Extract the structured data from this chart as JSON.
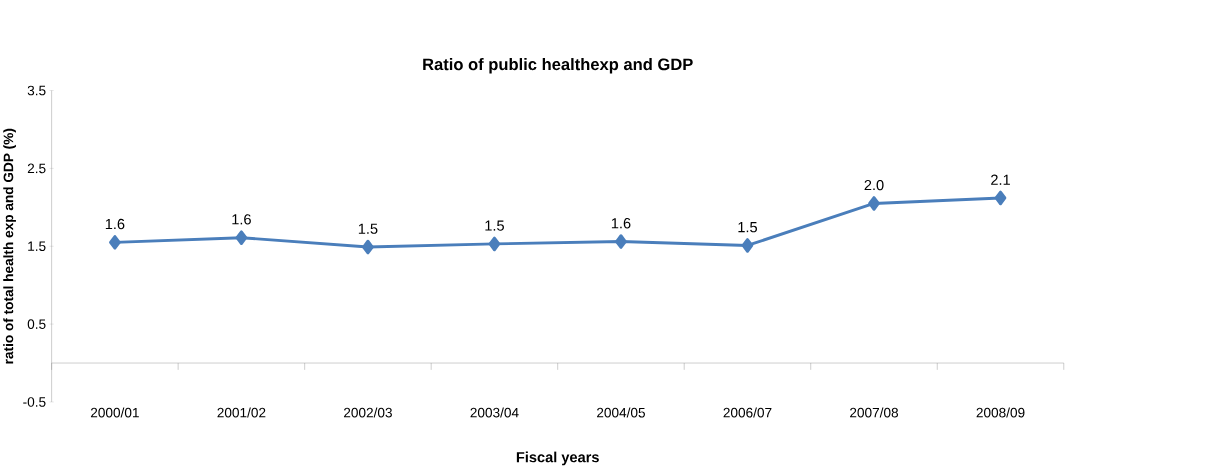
{
  "chart_data": {
    "type": "line",
    "title": "Ratio of public healthexp and GDP",
    "xlabel": "Fiscal years",
    "ylabel": "ratio of total health exp and GDP (%)",
    "categories": [
      "2000/01",
      "2001/02",
      "2002/03",
      "2003/04",
      "2004/05",
      "2006/07",
      "2007/08",
      "2008/09"
    ],
    "series": [
      {
        "color": "#4a7ebb",
        "values": [
          1.55,
          1.61,
          1.49,
          1.53,
          1.56,
          1.51,
          2.05,
          2.12
        ],
        "value_labels": [
          "1.6",
          "1.6",
          "1.5",
          "1.5",
          "1.6",
          "1.5",
          "2.0",
          "2.1"
        ]
      }
    ],
    "ylim": [
      -0.5,
      3.5
    ],
    "yticks": [
      -0.5,
      0.5,
      1.5,
      2.5,
      3.5
    ],
    "marker": "diamond",
    "line_style": "solid",
    "grid": false
  }
}
